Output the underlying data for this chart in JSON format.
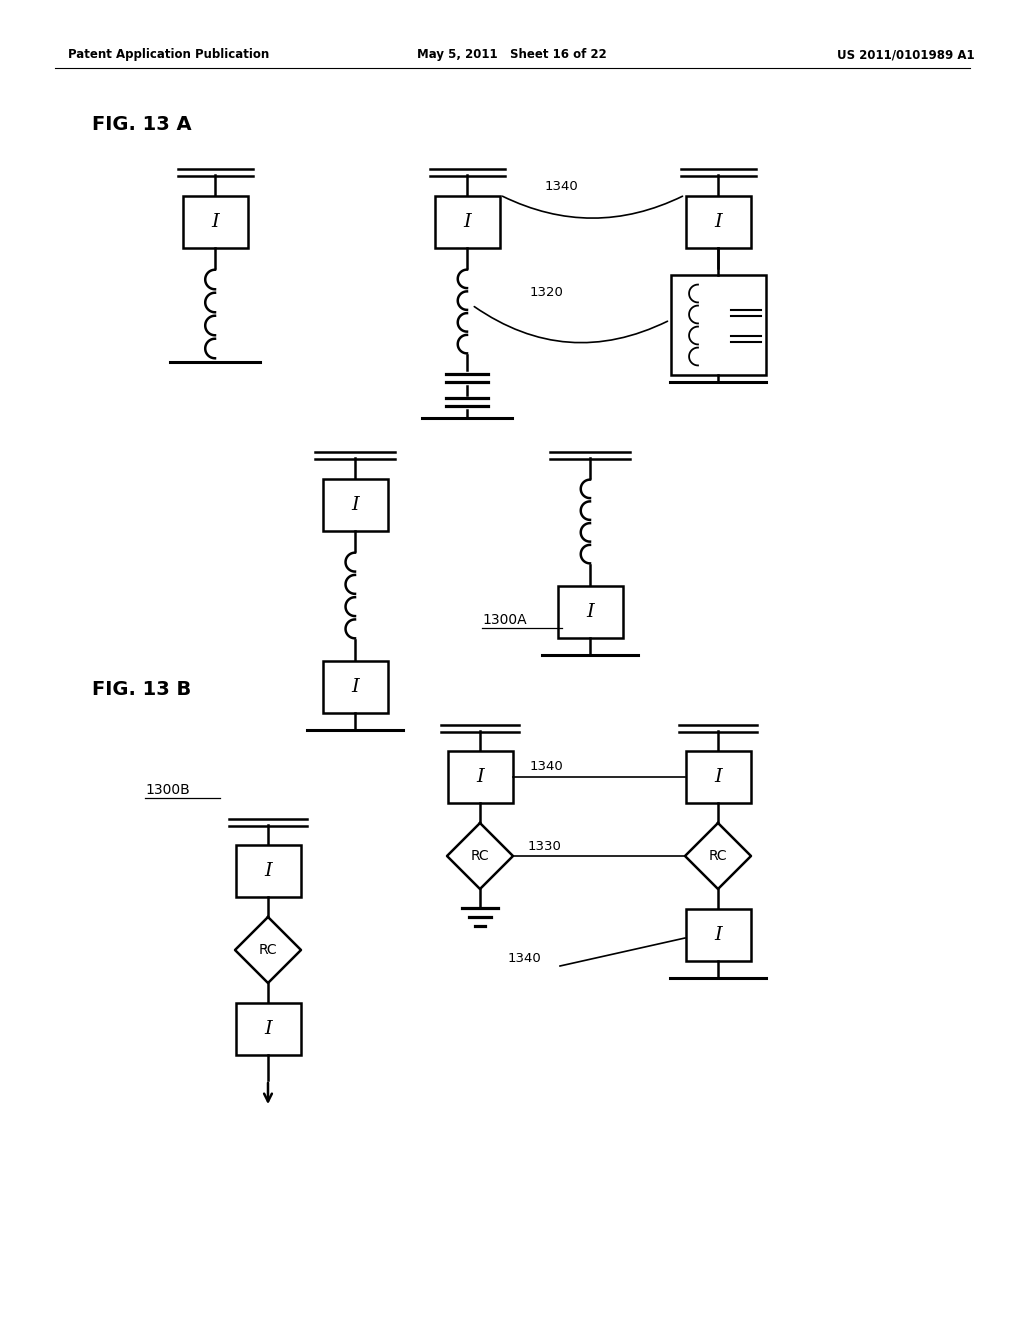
{
  "header_left": "Patent Application Publication",
  "header_mid": "May 5, 2011   Sheet 16 of 22",
  "header_right": "US 2011/0101989 A1",
  "fig_a_label": "FIG. 13 A",
  "fig_b_label": "FIG. 13 B",
  "label_1300A": "1300A",
  "label_1300B": "1300B",
  "label_1320": "1320",
  "label_1330": "1330",
  "label_1340a": "1340",
  "label_1340b": "1340",
  "label_1340c": "1340",
  "bg_color": "#ffffff",
  "line_color": "#000000"
}
